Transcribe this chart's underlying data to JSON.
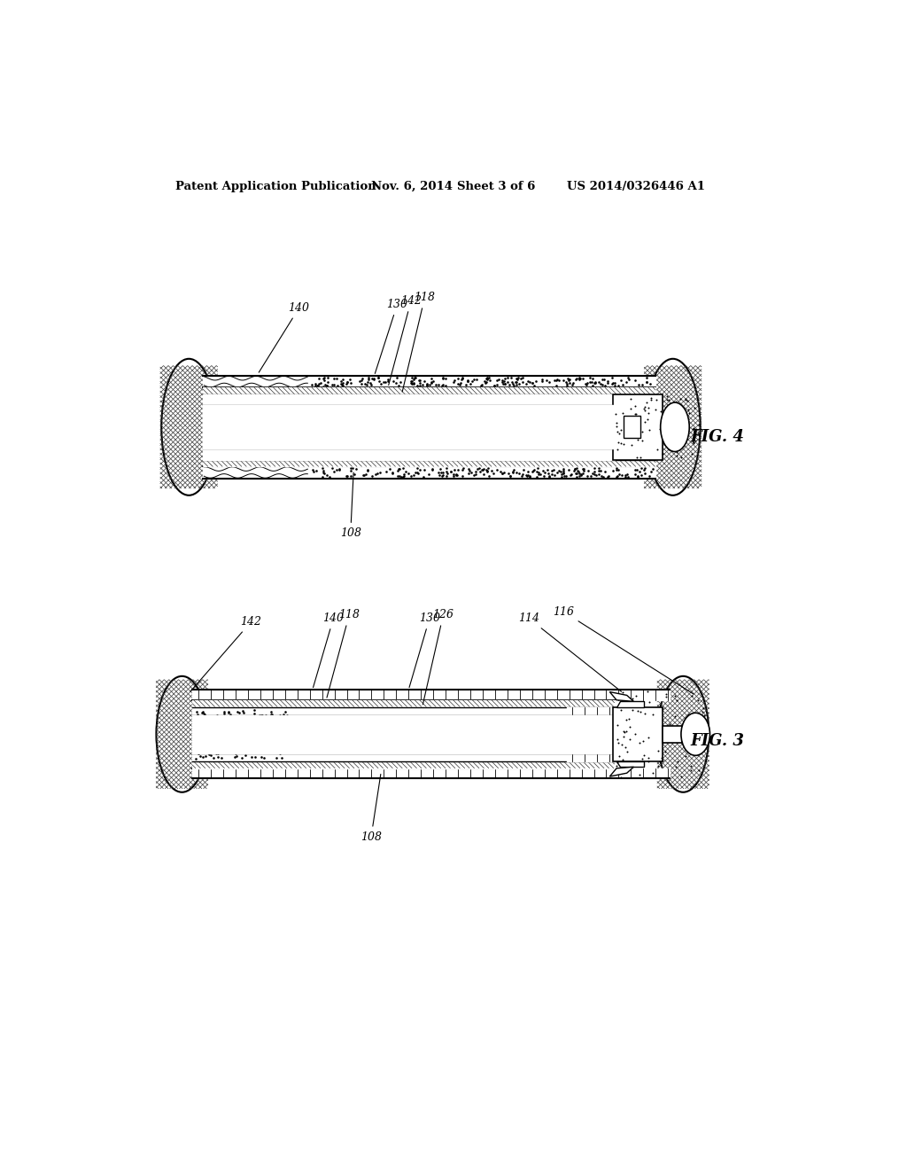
{
  "bg_color": "#ffffff",
  "header_text": "Patent Application Publication",
  "header_date": "Nov. 6, 2014",
  "header_sheet": "Sheet 3 of 6",
  "header_patent": "US 2014/0326446 A1",
  "fig4_label": "FIG. 4",
  "fig3_label": "FIG. 3",
  "line_color": "#000000",
  "hatch_color": "#333333"
}
